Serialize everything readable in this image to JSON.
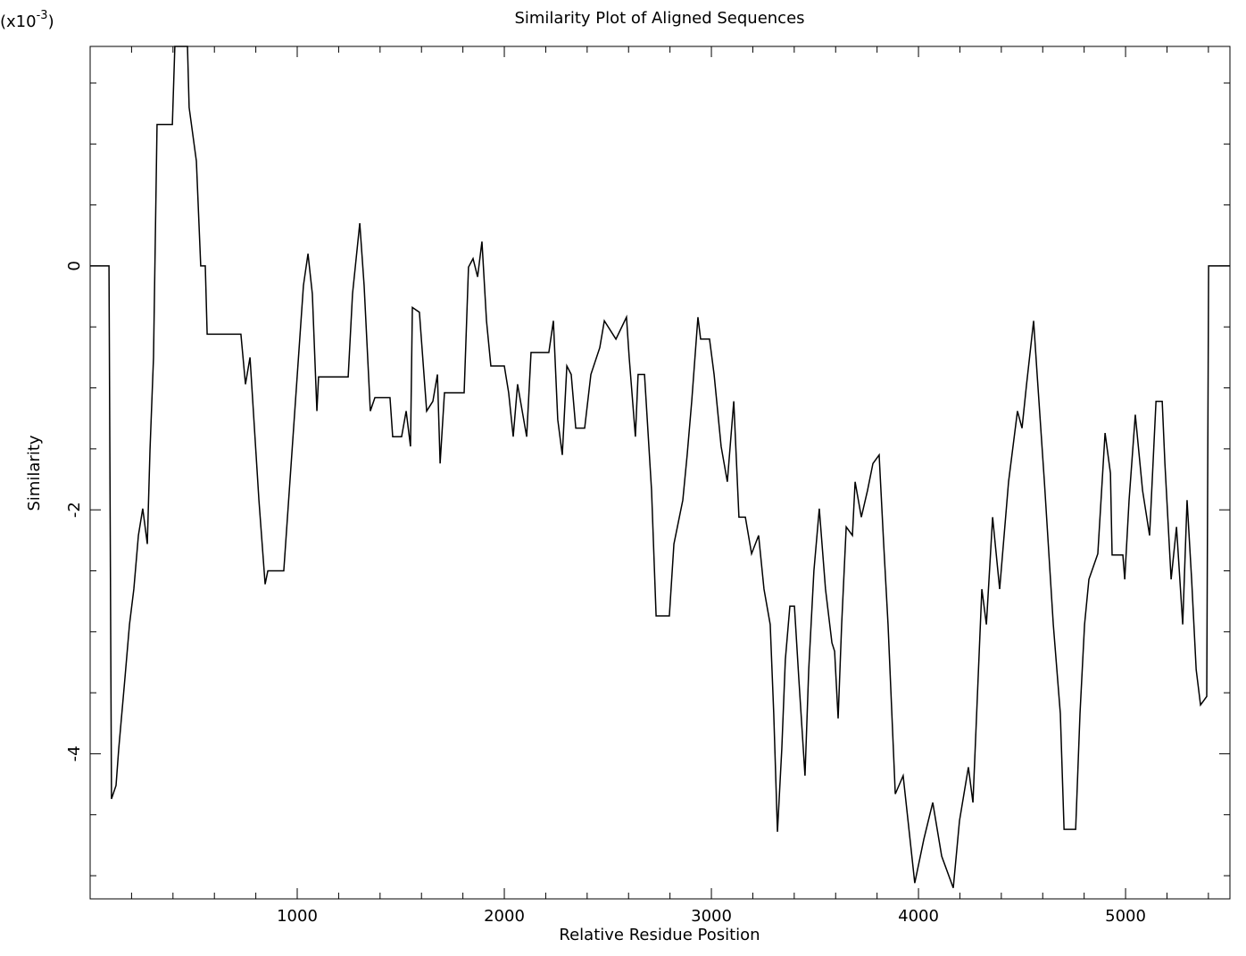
{
  "chart_data": {
    "type": "line",
    "title": "Similarity Plot of Aligned Sequences",
    "x_label": "Relative Residue Position",
    "y_label": "Similarity",
    "y_scale_label_parts": [
      "(x10",
      "-3",
      ")"
    ],
    "color": "#000000",
    "xlim": [
      0,
      5504
    ],
    "ylim": [
      -5.19,
      1.8
    ],
    "xticks": [
      1000,
      2000,
      3000,
      4000,
      5000
    ],
    "yticks": [
      -4,
      -2,
      0
    ],
    "xminorticks": [
      200,
      400,
      600,
      800,
      1200,
      1400,
      1600,
      1800,
      2200,
      2400,
      2600,
      2800,
      3200,
      3400,
      3600,
      3800,
      4200,
      4400,
      4600,
      4800,
      5200,
      5400
    ],
    "yminorticks": [
      -5,
      -4.5,
      -3.5,
      -3,
      -2.5,
      -1.5,
      -1,
      -0.5,
      0.5,
      1,
      1.5
    ],
    "x": [
      0,
      91,
      103,
      125,
      138,
      168,
      190,
      211,
      233,
      254,
      276,
      289,
      306,
      323,
      397,
      409,
      470,
      478,
      513,
      534,
      556,
      565,
      728,
      750,
      772,
      815,
      845,
      858,
      935,
      1030,
      1052,
      1073,
      1095,
      1103,
      1246,
      1267,
      1302,
      1323,
      1353,
      1375,
      1448,
      1461,
      1504,
      1526,
      1547,
      1556,
      1590,
      1625,
      1655,
      1677,
      1690,
      1711,
      1806,
      1827,
      1849,
      1871,
      1892,
      1914,
      1935,
      2000,
      2021,
      2043,
      2064,
      2108,
      2129,
      2215,
      2237,
      2258,
      2280,
      2302,
      2323,
      2345,
      2388,
      2418,
      2461,
      2483,
      2539,
      2590,
      2603,
      2633,
      2646,
      2677,
      2711,
      2733,
      2797,
      2819,
      2862,
      2883,
      2905,
      2935,
      2948,
      2991,
      3013,
      3047,
      3077,
      3108,
      3133,
      3164,
      3194,
      3228,
      3254,
      3284,
      3301,
      3319,
      3340,
      3357,
      3379,
      3401,
      3422,
      3452,
      3470,
      3495,
      3521,
      3551,
      3582,
      3595,
      3612,
      3629,
      3651,
      3681,
      3694,
      3724,
      3754,
      3780,
      3810,
      3832,
      3853,
      3888,
      3926,
      3982,
      4026,
      4069,
      4112,
      4168,
      4198,
      4241,
      4263,
      4306,
      4328,
      4358,
      4392,
      4435,
      4478,
      4500,
      4522,
      4556,
      4573,
      4608,
      4651,
      4685,
      4703,
      4759,
      4780,
      4802,
      4823,
      4866,
      4901,
      4927,
      4935,
      4987,
      4996,
      5017,
      5047,
      5082,
      5116,
      5147,
      5177,
      5190,
      5220,
      5246,
      5276,
      5297,
      5319,
      5341,
      5362,
      5392,
      5401,
      5504
    ],
    "values": [
      0,
      0,
      -4.37,
      -4.26,
      -3.96,
      -3.38,
      -2.94,
      -2.65,
      -2.21,
      -1.99,
      -2.28,
      -1.51,
      -0.75,
      1.16,
      1.16,
      1.8,
      1.8,
      1.3,
      0.86,
      0,
      0,
      -0.56,
      -0.56,
      -0.97,
      -0.75,
      -1.92,
      -2.61,
      -2.5,
      -2.5,
      -0.16,
      0.1,
      -0.23,
      -1.19,
      -0.91,
      -0.91,
      -0.23,
      0.35,
      -0.16,
      -1.19,
      -1.08,
      -1.08,
      -1.4,
      -1.4,
      -1.19,
      -1.48,
      -0.34,
      -0.38,
      -1.19,
      -1.11,
      -0.89,
      -1.62,
      -1.04,
      -1.04,
      -0.01,
      0.06,
      -0.09,
      0.2,
      -0.45,
      -0.82,
      -0.82,
      -1.04,
      -1.4,
      -0.97,
      -1.4,
      -0.71,
      -0.71,
      -0.45,
      -1.26,
      -1.55,
      -0.82,
      -0.89,
      -1.33,
      -1.33,
      -0.89,
      -0.67,
      -0.45,
      -0.6,
      -0.42,
      -0.75,
      -1.4,
      -0.89,
      -0.89,
      -1.84,
      -2.87,
      -2.87,
      -2.28,
      -1.92,
      -1.55,
      -1.11,
      -0.42,
      -0.6,
      -0.6,
      -0.89,
      -1.48,
      -1.77,
      -1.11,
      -2.06,
      -2.06,
      -2.36,
      -2.21,
      -2.65,
      -2.94,
      -3.67,
      -4.64,
      -3.96,
      -3.23,
      -2.79,
      -2.79,
      -3.38,
      -4.18,
      -3.31,
      -2.5,
      -1.99,
      -2.65,
      -3.09,
      -3.16,
      -3.71,
      -2.94,
      -2.14,
      -2.21,
      -1.77,
      -2.06,
      -1.84,
      -1.62,
      -1.55,
      -2.28,
      -2.94,
      -4.33,
      -4.18,
      -5.06,
      -4.7,
      -4.4,
      -4.84,
      -5.1,
      -4.55,
      -4.11,
      -4.4,
      -2.65,
      -2.94,
      -2.06,
      -2.65,
      -1.77,
      -1.19,
      -1.33,
      -0.97,
      -0.45,
      -0.89,
      -1.77,
      -2.94,
      -3.67,
      -4.62,
      -4.62,
      -3.67,
      -2.94,
      -2.57,
      -2.36,
      -1.37,
      -1.7,
      -2.37,
      -2.37,
      -2.57,
      -1.92,
      -1.22,
      -1.84,
      -2.21,
      -1.11,
      -1.11,
      -1.62,
      -2.57,
      -2.14,
      -2.94,
      -1.92,
      -2.57,
      -3.31,
      -3.6,
      -3.53,
      0,
      0
    ]
  }
}
